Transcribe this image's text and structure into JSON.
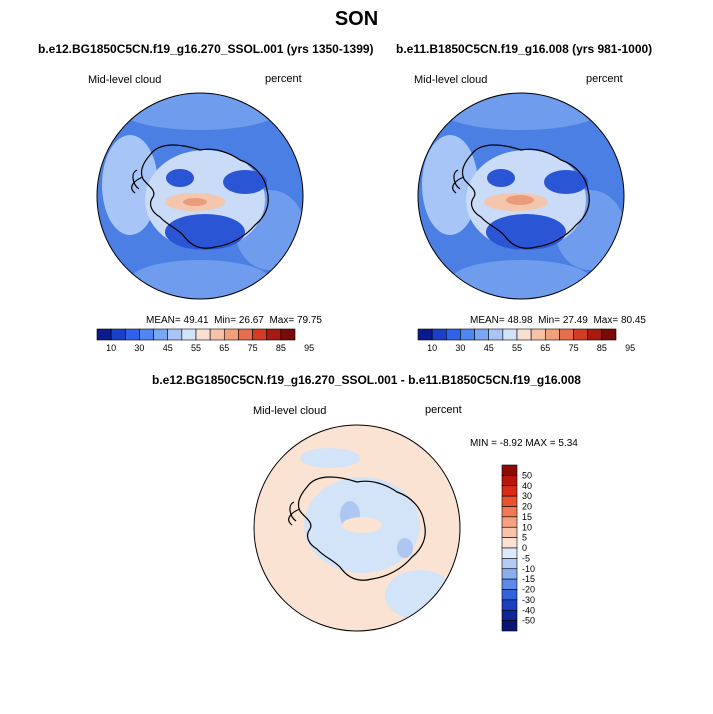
{
  "title": "SON",
  "panels": [
    {
      "case_title": "b.e12.BG1850C5CN.f19_g16.270_SSOL.001 (yrs 1350-1399)",
      "variable": "Mid-level cloud",
      "units": "percent",
      "stats": {
        "mean_label": "MEAN=",
        "mean": "49.41",
        "min_label": "Min=",
        "min": "26.67",
        "max_label": "Max=",
        "max": "79.75"
      }
    },
    {
      "case_title": "b.e11.B1850C5CN.f19_g16.008 (yrs 981-1000)",
      "variable": "Mid-level cloud",
      "units": "percent",
      "stats": {
        "mean_label": "MEAN=",
        "mean": "48.98",
        "min_label": "Min=",
        "min": "27.49",
        "max_label": "Max=",
        "max": "80.45"
      }
    }
  ],
  "abs_colorbar": {
    "labels": [
      "10",
      "30",
      "45",
      "55",
      "65",
      "75",
      "85",
      "95"
    ],
    "colors": [
      "#0a1a8c",
      "#1c3fc8",
      "#2f62e6",
      "#4f86ef",
      "#7aa6f2",
      "#a7c5f6",
      "#d2e3fa",
      "#f7e0d2",
      "#f6c3a7",
      "#f1a07b",
      "#e76e4d",
      "#d23c22",
      "#a61a10",
      "#7a0a06"
    ]
  },
  "diff_panel": {
    "title": "b.e12.BG1850C5CN.f19_g16.270_SSOL.001 - b.e11.B1850C5CN.f19_g16.008",
    "variable": "Mid-level cloud",
    "units": "percent",
    "stats": {
      "min_label": "MIN =",
      "min": "-8.92",
      "max_label": "MAX =",
      "max": "5.34"
    },
    "colorbar": {
      "labels": [
        "50",
        "40",
        "30",
        "20",
        "15",
        "10",
        "5",
        "0",
        "-5",
        "-10",
        "-15",
        "-20",
        "-30",
        "-40",
        "-50"
      ],
      "colors": [
        "#8e0a06",
        "#b8160c",
        "#d82a14",
        "#e9522e",
        "#f17a55",
        "#f5a083",
        "#f8c3aa",
        "#fbe2d3",
        "#dce9fa",
        "#b4ccf4",
        "#8aaeee",
        "#5c8ae6",
        "#3363d8",
        "#1c40bd",
        "#0e2596",
        "#081672"
      ]
    }
  },
  "map_colors": {
    "ocean_abs": "#4b7fe3",
    "ocean_abs_light": "#6f9cec",
    "deep_blue": "#2a56d6",
    "pale": "#c9dbf7",
    "warm": "#f4c6ad",
    "warm_strong": "#ea9b7c",
    "diff_bg": "#fbe3d3",
    "diff_blue": "#d3e3f8",
    "diff_blue2": "#aec7f2"
  }
}
